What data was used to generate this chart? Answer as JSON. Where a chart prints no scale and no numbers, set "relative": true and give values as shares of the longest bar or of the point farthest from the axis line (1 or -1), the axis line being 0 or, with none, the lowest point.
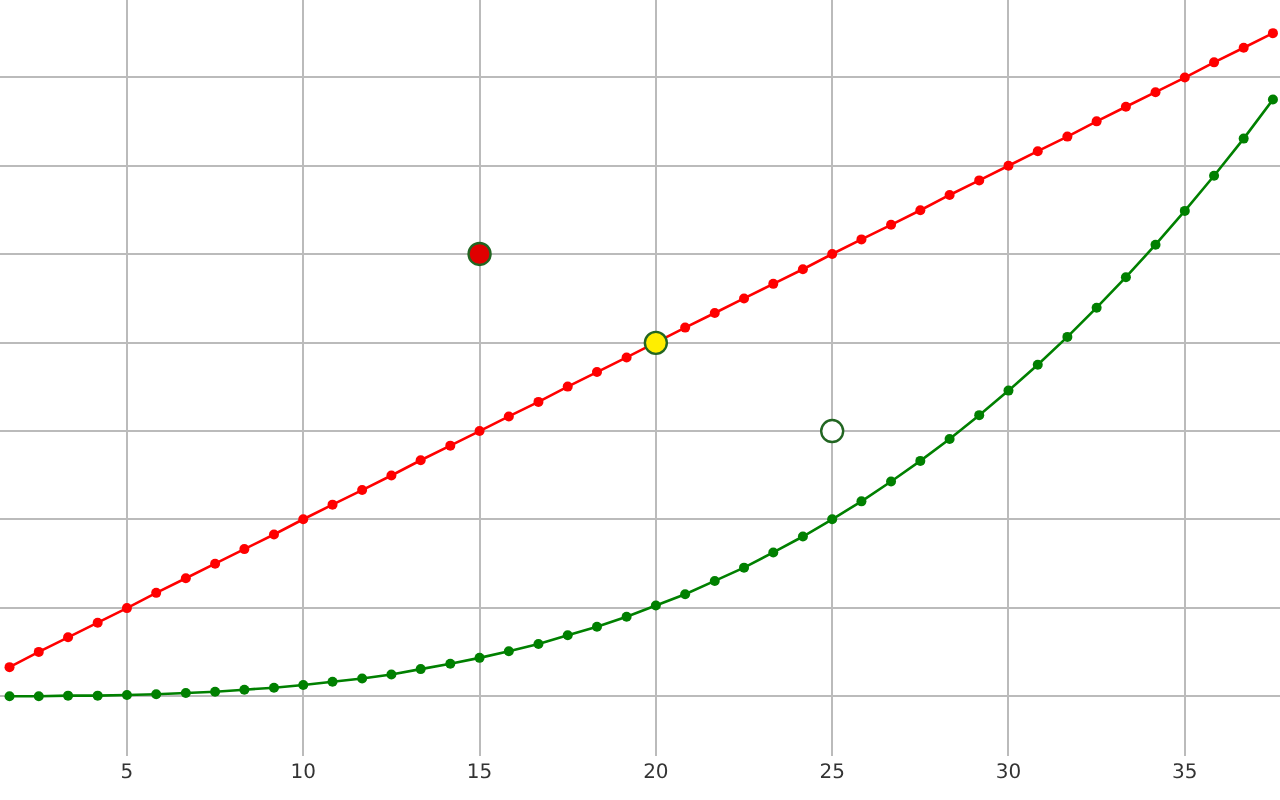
{
  "chart_data": {
    "type": "line",
    "relative": true,
    "grid": true,
    "tick_labels": "x",
    "marker": "circle",
    "line_style": "solid",
    "xlim": [
      1.4,
      37.7
    ],
    "xticks": [
      5,
      10,
      15,
      20,
      25,
      30,
      35
    ],
    "series": [
      {
        "color": "#ff0000",
        "x": [
          1.67,
          2.5,
          3.33,
          4.17,
          5,
          5.83,
          6.67,
          7.5,
          8.33,
          9.17,
          10,
          10.83,
          11.67,
          12.5,
          13.33,
          14.17,
          15,
          15.83,
          16.67,
          17.5,
          18.33,
          19.17,
          20,
          20.83,
          21.67,
          22.5,
          23.33,
          24.17,
          25,
          25.83,
          26.67,
          27.5,
          28.33,
          29.17,
          30,
          30.83,
          31.67,
          32.5,
          33.33,
          34.17,
          35,
          35.83,
          36.67,
          37.5
        ],
        "values": [
          0.044,
          0.067,
          0.089,
          0.111,
          0.133,
          0.156,
          0.178,
          0.2,
          0.222,
          0.244,
          0.267,
          0.289,
          0.311,
          0.333,
          0.356,
          0.378,
          0.4,
          0.422,
          0.444,
          0.467,
          0.489,
          0.511,
          null,
          0.556,
          0.578,
          0.6,
          0.622,
          0.644,
          0.667,
          0.689,
          0.711,
          0.733,
          0.756,
          0.778,
          0.8,
          0.822,
          0.844,
          0.867,
          0.889,
          0.911,
          0.933,
          0.956,
          0.978,
          1
        ]
      },
      {
        "color": "#008000",
        "x": [
          1.67,
          2.5,
          3.33,
          4.17,
          5,
          5.83,
          6.67,
          7.5,
          8.33,
          9.17,
          10,
          10.83,
          11.67,
          12.5,
          13.33,
          14.17,
          15,
          15.83,
          16.67,
          17.5,
          18.33,
          19.17,
          20,
          20.83,
          21.67,
          22.5,
          23.33,
          24.17,
          25,
          25.83,
          26.67,
          27.5,
          28.33,
          29.17,
          30,
          30.83,
          31.67,
          32.5,
          33.33,
          34.17,
          35,
          35.83,
          36.67,
          37.5
        ],
        "values": [
          0,
          0,
          0.001,
          0.001,
          0.002,
          0.003,
          0.005,
          0.007,
          0.01,
          0.013,
          0.017,
          0.022,
          0.027,
          0.033,
          0.041,
          0.049,
          0.058,
          0.068,
          0.079,
          0.092,
          0.105,
          0.12,
          0.137,
          0.154,
          0.174,
          0.194,
          0.217,
          0.241,
          0.267,
          0.294,
          0.324,
          0.355,
          0.388,
          0.424,
          0.461,
          0.5,
          0.542,
          0.586,
          0.632,
          0.681,
          0.732,
          0.785,
          0.841,
          0.9
        ]
      },
      {
        "type": "scatter",
        "color": "#e00000",
        "x": [
          15
        ],
        "values": [
          0.667
        ]
      },
      {
        "type": "scatter",
        "color": "#ffee00",
        "x": [
          20
        ],
        "values": [
          0.533
        ]
      },
      {
        "type": "scatter",
        "color": "#ffffff",
        "x": [
          25
        ],
        "values": [
          0.4
        ]
      }
    ]
  }
}
